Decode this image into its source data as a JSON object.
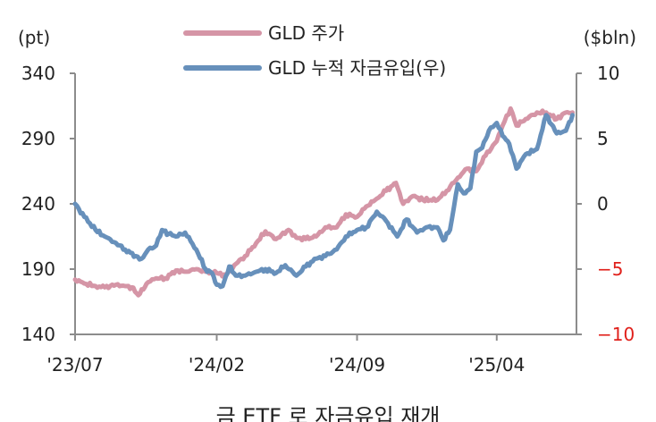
{
  "chart_data": {
    "type": "line",
    "x_ticks": [
      "'23/07",
      "'24/02",
      "'24/09",
      "'25/04"
    ],
    "left_axis": {
      "unit": "(pt)",
      "ticks": [
        "340",
        "290",
        "240",
        "190",
        "140"
      ],
      "min": 140,
      "max": 340
    },
    "right_axis": {
      "unit": "($bln)",
      "ticks": [
        "10",
        "5",
        "0",
        "-5",
        "-10"
      ],
      "min": -10,
      "max": 10
    },
    "legend_placement": "top",
    "grid": false,
    "series": [
      {
        "name": "GLD 주가",
        "axis": "left",
        "color": "#d595a6",
        "points": [
          [
            "2023-07-01",
            182
          ],
          [
            "2023-07-15",
            179
          ],
          [
            "2023-08-01",
            177
          ],
          [
            "2023-08-15",
            176
          ],
          [
            "2023-09-01",
            178
          ],
          [
            "2023-09-15",
            177
          ],
          [
            "2023-09-25",
            176
          ],
          [
            "2023-10-05",
            170
          ],
          [
            "2023-10-20",
            180
          ],
          [
            "2023-11-01",
            183
          ],
          [
            "2023-11-15",
            183
          ],
          [
            "2023-12-01",
            189
          ],
          [
            "2023-12-15",
            188
          ],
          [
            "2024-01-01",
            190
          ],
          [
            "2024-01-15",
            188
          ],
          [
            "2024-02-01",
            187
          ],
          [
            "2024-02-15",
            185
          ],
          [
            "2024-03-01",
            194
          ],
          [
            "2024-03-15",
            200
          ],
          [
            "2024-04-01",
            210
          ],
          [
            "2024-04-15",
            219
          ],
          [
            "2024-05-01",
            213
          ],
          [
            "2024-05-20",
            220
          ],
          [
            "2024-06-01",
            214
          ],
          [
            "2024-06-15",
            213
          ],
          [
            "2024-07-01",
            215
          ],
          [
            "2024-07-15",
            222
          ],
          [
            "2024-08-01",
            222
          ],
          [
            "2024-08-15",
            232
          ],
          [
            "2024-09-01",
            230
          ],
          [
            "2024-09-15",
            238
          ],
          [
            "2024-10-01",
            244
          ],
          [
            "2024-10-15",
            250
          ],
          [
            "2024-10-30",
            256
          ],
          [
            "2024-11-10",
            240
          ],
          [
            "2024-11-25",
            246
          ],
          [
            "2024-12-10",
            243
          ],
          [
            "2025-01-01",
            243
          ],
          [
            "2025-01-15",
            250
          ],
          [
            "2025-02-01",
            260
          ],
          [
            "2025-02-15",
            267
          ],
          [
            "2025-03-01",
            265
          ],
          [
            "2025-03-15",
            277
          ],
          [
            "2025-04-01",
            288
          ],
          [
            "2025-04-10",
            300
          ],
          [
            "2025-04-22",
            313
          ],
          [
            "2025-05-01",
            300
          ],
          [
            "2025-05-15",
            305
          ],
          [
            "2025-06-01",
            310
          ],
          [
            "2025-06-15",
            310
          ],
          [
            "2025-07-01",
            305
          ],
          [
            "2025-07-15",
            310
          ],
          [
            "2025-07-25",
            310
          ]
        ]
      },
      {
        "name": "GLD 누적 자금유입(우)",
        "axis": "right",
        "color": "#6790bb",
        "points": [
          [
            "2023-07-01",
            0
          ],
          [
            "2023-07-15",
            -1
          ],
          [
            "2023-08-01",
            -2
          ],
          [
            "2023-08-15",
            -2.5
          ],
          [
            "2023-09-01",
            -3
          ],
          [
            "2023-09-15",
            -3.5
          ],
          [
            "2023-10-01",
            -4
          ],
          [
            "2023-10-10",
            -4.2
          ],
          [
            "2023-10-20",
            -3.5
          ],
          [
            "2023-11-01",
            -3.2
          ],
          [
            "2023-11-10",
            -2
          ],
          [
            "2023-11-20",
            -2.3
          ],
          [
            "2023-12-01",
            -2.5
          ],
          [
            "2023-12-15",
            -2.2
          ],
          [
            "2024-01-01",
            -3.5
          ],
          [
            "2024-01-15",
            -5
          ],
          [
            "2024-01-25",
            -5.3
          ],
          [
            "2024-02-01",
            -6.2
          ],
          [
            "2024-02-10",
            -6.3
          ],
          [
            "2024-02-20",
            -4.8
          ],
          [
            "2024-03-01",
            -5.5
          ],
          [
            "2024-03-15",
            -5.5
          ],
          [
            "2024-04-01",
            -5.2
          ],
          [
            "2024-04-15",
            -5
          ],
          [
            "2024-05-01",
            -5.3
          ],
          [
            "2024-05-15",
            -4.7
          ],
          [
            "2024-06-01",
            -5.5
          ],
          [
            "2024-06-15",
            -4.8
          ],
          [
            "2024-07-01",
            -4.2
          ],
          [
            "2024-07-15",
            -4
          ],
          [
            "2024-08-01",
            -3.5
          ],
          [
            "2024-08-15",
            -2.5
          ],
          [
            "2024-09-01",
            -2
          ],
          [
            "2024-09-15",
            -1.8
          ],
          [
            "2024-10-01",
            -0.6
          ],
          [
            "2024-10-15",
            -1.3
          ],
          [
            "2024-11-01",
            -2.5
          ],
          [
            "2024-11-15",
            -1.2
          ],
          [
            "2024-12-01",
            -2.2
          ],
          [
            "2024-12-15",
            -1.8
          ],
          [
            "2025-01-01",
            -1.8
          ],
          [
            "2025-01-10",
            -2.8
          ],
          [
            "2025-01-20",
            -2
          ],
          [
            "2025-02-01",
            1.5
          ],
          [
            "2025-02-10",
            0.8
          ],
          [
            "2025-02-20",
            1.2
          ],
          [
            "2025-03-01",
            4
          ],
          [
            "2025-03-10",
            4.3
          ],
          [
            "2025-03-20",
            5.6
          ],
          [
            "2025-04-01",
            6.2
          ],
          [
            "2025-04-10",
            5.2
          ],
          [
            "2025-04-20",
            4.6
          ],
          [
            "2025-05-01",
            2.7
          ],
          [
            "2025-05-15",
            3.8
          ],
          [
            "2025-06-01",
            4.2
          ],
          [
            "2025-06-15",
            6.8
          ],
          [
            "2025-07-01",
            5.4
          ],
          [
            "2025-07-15",
            5.6
          ],
          [
            "2025-07-25",
            6.8
          ]
        ]
      }
    ]
  },
  "caption": "금 ETF 로 자금유입 재개"
}
